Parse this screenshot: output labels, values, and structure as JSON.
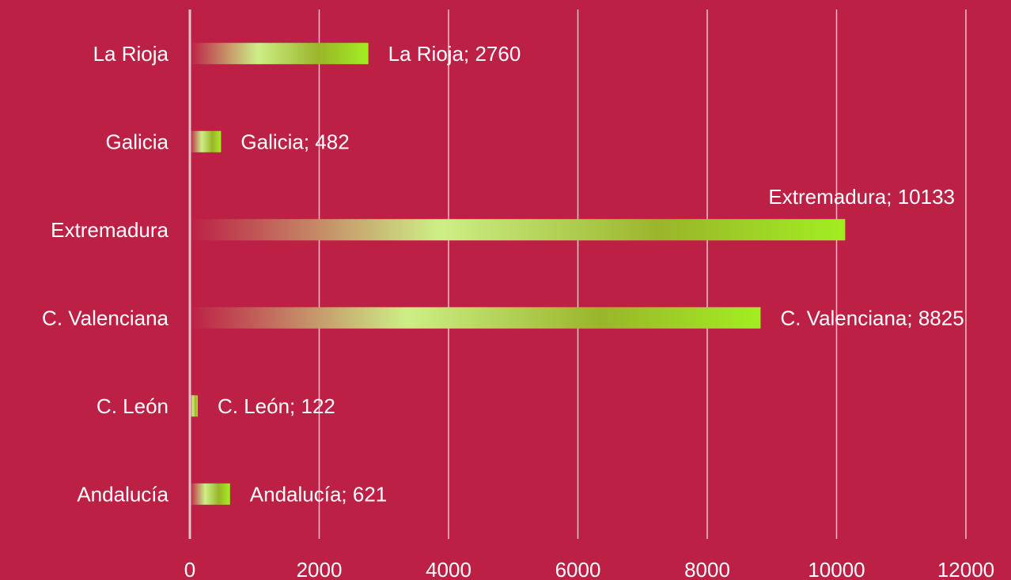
{
  "chart_data": {
    "type": "bar",
    "orientation": "horizontal",
    "categories": [
      "La Rioja",
      "Galicia",
      "Extremadura",
      "C. Valenciana",
      "C. León",
      "Andalucía"
    ],
    "values": [
      2760,
      482,
      10133,
      8825,
      122,
      621
    ],
    "data_labels": [
      "La Rioja; 2760",
      "Galicia; 482",
      "Extremadura; 10133",
      "C. Valenciana; 8825",
      "C. León; 122",
      "Andalucía; 621"
    ],
    "xlim": [
      0,
      12000
    ],
    "x_ticks": [
      "0",
      "2000",
      "4000",
      "6000",
      "8000",
      "10000",
      "12000"
    ],
    "grid": true,
    "legend": "none",
    "colors": {
      "background": "#BC2045",
      "gridline": "#E8C4CC",
      "text": "#FFFFFF",
      "bar_gradient": [
        "#BC2045",
        "#CDEF86",
        "#9AB52A",
        "#A2EE22"
      ]
    }
  }
}
